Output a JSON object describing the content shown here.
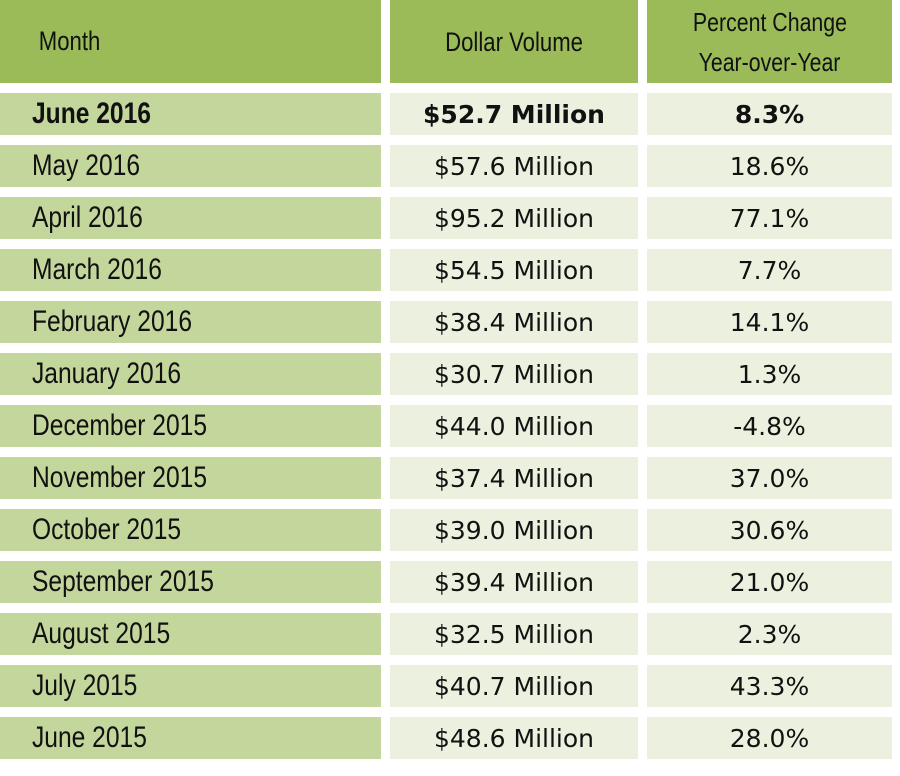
{
  "colors": {
    "header": "#9bbb59",
    "month_cell": "#c3d69b",
    "value_cell": "#ebf1de"
  },
  "headers": {
    "month": "Month",
    "volume": "Dollar Volume",
    "change_line1": "Percent Change",
    "change_line2": "Year-over-Year"
  },
  "rows": [
    {
      "month": "June 2016",
      "volume": "$52.7 Million",
      "change": "8.3%"
    },
    {
      "month": "May 2016",
      "volume": "$57.6 Million",
      "change": "18.6%"
    },
    {
      "month": "April 2016",
      "volume": "$95.2 Million",
      "change": "77.1%"
    },
    {
      "month": "March 2016",
      "volume": "$54.5 Million",
      "change": "7.7%"
    },
    {
      "month": "February 2016",
      "volume": "$38.4 Million",
      "change": "14.1%"
    },
    {
      "month": "January 2016",
      "volume": "$30.7 Million",
      "change": "1.3%"
    },
    {
      "month": "December 2015",
      "volume": "$44.0 Million",
      "change": "-4.8%"
    },
    {
      "month": "November 2015",
      "volume": "$37.4 Million",
      "change": "37.0%"
    },
    {
      "month": "October 2015",
      "volume": "$39.0 Million",
      "change": "30.6%"
    },
    {
      "month": "September 2015",
      "volume": "$39.4 Million",
      "change": "21.0%"
    },
    {
      "month": "August 2015",
      "volume": "$32.5 Million",
      "change": "2.3%"
    },
    {
      "month": "July 2015",
      "volume": "$40.7 Million",
      "change": "43.3%"
    },
    {
      "month": "June 2015",
      "volume": "$48.6 Million",
      "change": "28.0%"
    }
  ]
}
